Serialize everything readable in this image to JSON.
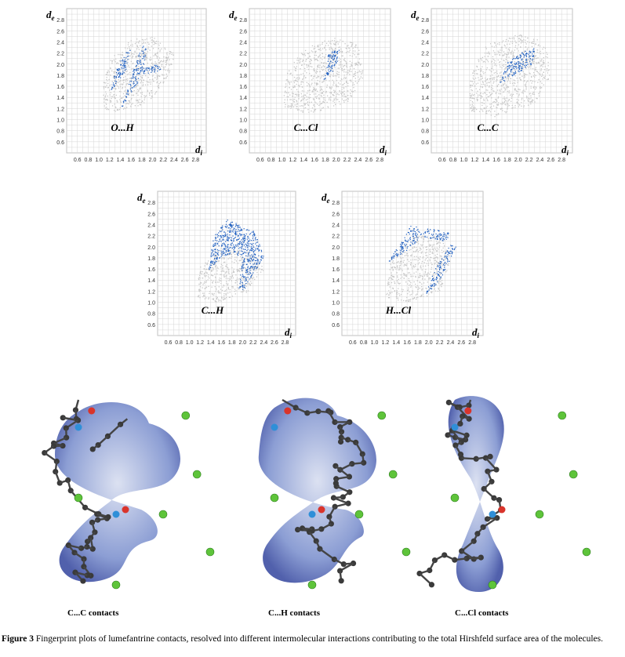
{
  "fingerprint_plots": [
    {
      "label": "O...H"
    },
    {
      "label": "C...Cl"
    },
    {
      "label": "C...C"
    },
    {
      "label": "C...H"
    },
    {
      "label": "H...Cl"
    }
  ],
  "axes": {
    "y_symbol": "d",
    "y_subscript": "e",
    "x_symbol": "d",
    "x_subscript": "i",
    "y_ticks": [
      "2.8",
      "2.6",
      "2.4",
      "2.2",
      "2.0",
      "1.8",
      "1.6",
      "1.4",
      "1.2",
      "1.0",
      "0.8",
      "0.6"
    ],
    "x_ticks": [
      "0.6",
      "0.8",
      "1.0",
      "1.2",
      "1.4",
      "1.6",
      "1.8",
      "2.0",
      "2.2",
      "2.4",
      "2.6",
      "2.8"
    ]
  },
  "colors": {
    "background_points": "#c8c8c8",
    "highlight_points": "#1f5fc0",
    "surface": "#7f93cf",
    "grid": "#d6d6d6"
  },
  "surfaces": [
    {
      "label": "C...C contacts"
    },
    {
      "label": "C...H contacts"
    },
    {
      "label": "C...Cl contacts"
    }
  ],
  "caption": {
    "number": "Figure 3",
    "text": "Fingerprint plots of lumefantrine contacts, resolved into different intermolecular interactions contributing to the total Hirshfeld surface area of the molecules."
  }
}
